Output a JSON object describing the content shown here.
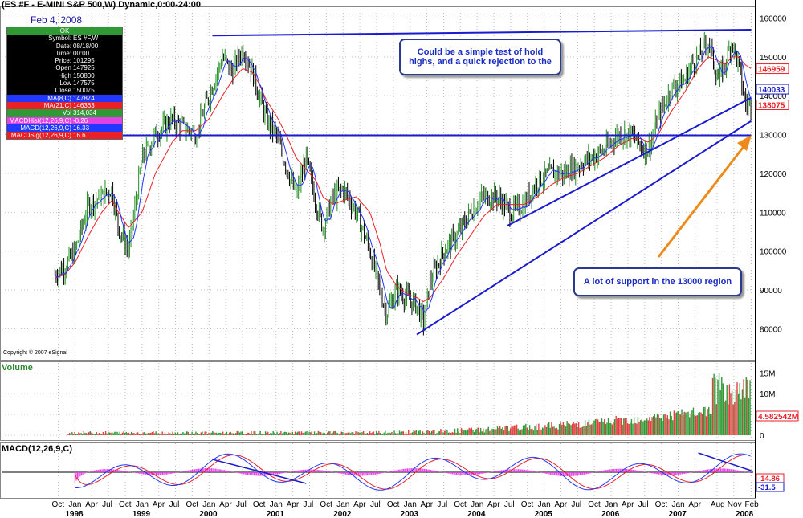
{
  "header": {
    "title": "(ES #F - E-MINI S&P 500,W) Dynamic,0:00-24:00",
    "date": "Feb 4, 2008"
  },
  "info_box": {
    "status": "OK",
    "rows": [
      {
        "label": "Symbol:",
        "value": "ES #F,W"
      },
      {
        "label": "Date:",
        "value": "08/18/00"
      },
      {
        "label": "Time:",
        "value": "00:00"
      },
      {
        "label": "Price:",
        "value": "101295"
      },
      {
        "label": "Open",
        "value": "147925"
      },
      {
        "label": "High",
        "value": "150800"
      },
      {
        "label": "Low",
        "value": "147575"
      },
      {
        "label": "Close",
        "value": "150075"
      }
    ],
    "indicators": [
      {
        "label": "MA(8,C)",
        "value": "147874"
      },
      {
        "label": "MA(21,C)",
        "value": "146363"
      },
      {
        "label": "Vol",
        "value": "314,034"
      },
      {
        "label": "MACDHist(12,26,9,C)",
        "value": "-0.26"
      },
      {
        "label": "MACD(12,26,9,C)",
        "value": "16.33"
      },
      {
        "label": "MACDSig(12,26,9,C)",
        "value": "16.6"
      }
    ]
  },
  "copyright": "Copyright © 2007 eSignal",
  "annotations": {
    "callout_top": "Could be a simple test of hold highs, and a quick rejection to the",
    "callout_bottom": "A lot of support in the 13000 region"
  },
  "colors": {
    "price_up": "#1f8f1f",
    "price_down": "#000000",
    "ma8": "#2237ff",
    "ma21": "#ea2027",
    "trendline": "#1a1ad0",
    "arrow": "#ee8a1a",
    "hist": "#e342e3",
    "macd_line": "#2237ff",
    "signal_line": "#ea2027"
  },
  "chart_data": [
    {
      "type": "line",
      "title": "ES #F - E-MINI S&P 500, W",
      "y_ticks": [
        80000,
        90000,
        100000,
        110000,
        120000,
        130000,
        140000,
        150000,
        160000
      ],
      "y_tick_labels": [
        "80000",
        "90000",
        "100000",
        "110000",
        "120000",
        "130000",
        "140000",
        "150000",
        "160000"
      ],
      "ylim": [
        72000,
        163000
      ],
      "x": [
        1997.7,
        1997.85,
        1998.0,
        1998.2,
        1998.4,
        1998.55,
        1998.65,
        1998.8,
        1999.0,
        1999.2,
        1999.45,
        1999.6,
        1999.8,
        2000.0,
        2000.2,
        2000.35,
        2000.5,
        2000.65,
        2000.75,
        2000.85,
        2001.0,
        2001.15,
        2001.3,
        2001.45,
        2001.6,
        2001.7,
        2001.85,
        2002.0,
        2002.2,
        2002.4,
        2002.55,
        2002.65,
        2002.8,
        2002.95,
        2003.1,
        2003.2,
        2003.3,
        2003.5,
        2003.7,
        2003.9,
        2004.1,
        2004.3,
        2004.5,
        2004.7,
        2004.9,
        2005.1,
        2005.3,
        2005.5,
        2005.7,
        2005.9,
        2006.1,
        2006.3,
        2006.45,
        2006.55,
        2006.7,
        2006.9,
        2007.1,
        2007.2,
        2007.3,
        2007.45,
        2007.6,
        2007.7,
        2007.8,
        2007.9,
        2008.0,
        2008.09
      ],
      "close": [
        94000,
        96000,
        100000,
        112000,
        114000,
        116000,
        106000,
        100000,
        124000,
        130000,
        134000,
        132000,
        130000,
        140000,
        150000,
        146000,
        152000,
        146000,
        140000,
        134000,
        130000,
        122000,
        114000,
        124000,
        112000,
        106000,
        114000,
        116000,
        110000,
        100000,
        90000,
        84000,
        90000,
        88000,
        86000,
        82000,
        92000,
        100000,
        104000,
        110000,
        114000,
        114000,
        110000,
        112000,
        118000,
        120000,
        120000,
        122000,
        124000,
        126000,
        130000,
        130000,
        127000,
        126000,
        134000,
        142000,
        144000,
        148000,
        150000,
        154000,
        144000,
        148000,
        154000,
        148000,
        138000,
        138075
      ],
      "ma21": [
        93000,
        94000,
        97000,
        104000,
        110000,
        113000,
        110000,
        106000,
        110000,
        120000,
        128000,
        131000,
        131000,
        134000,
        140000,
        144000,
        147000,
        146000,
        143000,
        139000,
        135000,
        130000,
        124000,
        121000,
        118000,
        114000,
        112000,
        113000,
        114000,
        110000,
        102000,
        95000,
        91000,
        89000,
        88000,
        87000,
        88000,
        93000,
        99000,
        104000,
        109000,
        112000,
        112000,
        112000,
        114000,
        117000,
        119000,
        120000,
        122000,
        124000,
        127000,
        129000,
        129000,
        128000,
        130000,
        136000,
        141000,
        144000,
        147000,
        150000,
        149000,
        148000,
        150000,
        150000,
        148000,
        146959
      ],
      "last_values": [
        "146959",
        "140033",
        "138075"
      ],
      "support_level": 130000
    },
    {
      "type": "bar",
      "title": "Volume",
      "y_ticks": [
        0,
        5000000,
        10000000,
        15000000
      ],
      "y_tick_labels": [
        "0",
        "5M",
        "10M",
        "15M"
      ],
      "ylim": [
        0,
        17000000
      ],
      "last_value": "4.582542M"
    },
    {
      "type": "line",
      "title": "MACD(12,26,9,C)",
      "last_values": [
        "-14.86",
        "-31.5"
      ]
    }
  ],
  "x_axis": {
    "months": [
      {
        "label": "Oct",
        "t": 1997.75
      },
      {
        "label": "Jan",
        "t": 1998.0
      },
      {
        "label": "Apr",
        "t": 1998.25
      },
      {
        "label": "Jul",
        "t": 1998.5
      },
      {
        "label": "Oct",
        "t": 1998.75
      },
      {
        "label": "Jan",
        "t": 1999.0
      },
      {
        "label": "Apr",
        "t": 1999.25
      },
      {
        "label": "Jul",
        "t": 1999.5
      },
      {
        "label": "Oct",
        "t": 1999.75
      },
      {
        "label": "Jan",
        "t": 2000.0
      },
      {
        "label": "Apr",
        "t": 2000.25
      },
      {
        "label": "Jul",
        "t": 2000.5
      },
      {
        "label": "Oct",
        "t": 2000.75
      },
      {
        "label": "Jan",
        "t": 2001.0
      },
      {
        "label": "Apr",
        "t": 2001.25
      },
      {
        "label": "Jul",
        "t": 2001.5
      },
      {
        "label": "Oct",
        "t": 2001.75
      },
      {
        "label": "Jan",
        "t": 2002.0
      },
      {
        "label": "Apr",
        "t": 2002.25
      },
      {
        "label": "Jul",
        "t": 2002.5
      },
      {
        "label": "Oct",
        "t": 2002.75
      },
      {
        "label": "Jan",
        "t": 2003.0
      },
      {
        "label": "Apr",
        "t": 2003.25
      },
      {
        "label": "Jul",
        "t": 2003.5
      },
      {
        "label": "Oct",
        "t": 2003.75
      },
      {
        "label": "Jan",
        "t": 2004.0
      },
      {
        "label": "Apr",
        "t": 2004.25
      },
      {
        "label": "Jul",
        "t": 2004.5
      },
      {
        "label": "Oct",
        "t": 2004.75
      },
      {
        "label": "Jan",
        "t": 2005.0
      },
      {
        "label": "Apr",
        "t": 2005.25
      },
      {
        "label": "Jul",
        "t": 2005.5
      },
      {
        "label": "Oct",
        "t": 2005.75
      },
      {
        "label": "Jan",
        "t": 2006.0
      },
      {
        "label": "Apr",
        "t": 2006.25
      },
      {
        "label": "Jul",
        "t": 2006.5
      },
      {
        "label": "Oct",
        "t": 2006.75
      },
      {
        "label": "Jan",
        "t": 2007.0
      },
      {
        "label": "Apr",
        "t": 2007.25
      },
      {
        "label": "Aug",
        "t": 2007.58
      },
      {
        "label": "Nov",
        "t": 2007.83
      },
      {
        "label": "Feb",
        "t": 2008.09
      }
    ],
    "years": [
      {
        "label": "1998",
        "t": 1998.0
      },
      {
        "label": "1999",
        "t": 1999.0
      },
      {
        "label": "2000",
        "t": 2000.0
      },
      {
        "label": "2001",
        "t": 2001.0
      },
      {
        "label": "2002",
        "t": 2002.0
      },
      {
        "label": "2003",
        "t": 2003.0
      },
      {
        "label": "2004",
        "t": 2004.0
      },
      {
        "label": "2005",
        "t": 2005.0
      },
      {
        "label": "2006",
        "t": 2006.0
      },
      {
        "label": "2007",
        "t": 2007.0
      },
      {
        "label": "2008",
        "t": 2008.0
      }
    ]
  }
}
